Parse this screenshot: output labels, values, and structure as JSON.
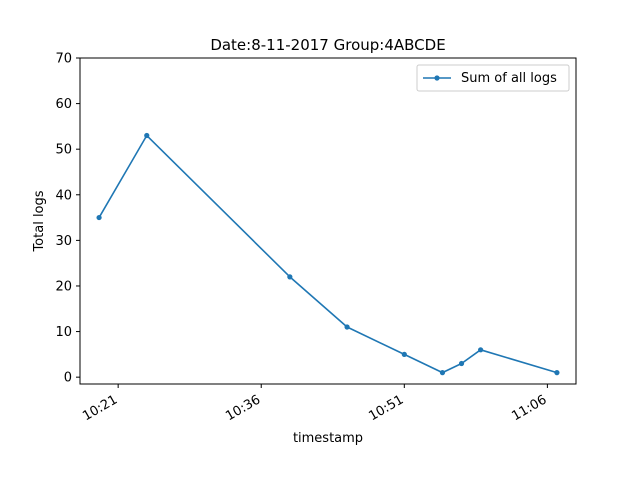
{
  "chart_data": {
    "type": "line",
    "title": "Date:8-11-2017  Group:4ABCDE",
    "xlabel": "timestamp",
    "ylabel": "Total logs",
    "x_time": [
      "10:19",
      "10:24",
      "10:39",
      "10:45",
      "10:51",
      "10:55",
      "10:57",
      "10:59",
      "11:07"
    ],
    "x_ticks": [
      "10:21",
      "10:36",
      "10:51",
      "11:06"
    ],
    "x_range": [
      "10:17",
      "11:09"
    ],
    "y_ticks": [
      0,
      10,
      20,
      30,
      40,
      50,
      60,
      70
    ],
    "ylim": [
      -1.5,
      70
    ],
    "grid": false,
    "legend_position": "top-right",
    "series": [
      {
        "name": "Sum of all logs",
        "color": "#1f77b4",
        "values": [
          35,
          53,
          22,
          11,
          5,
          1,
          3,
          6,
          1
        ]
      }
    ]
  }
}
